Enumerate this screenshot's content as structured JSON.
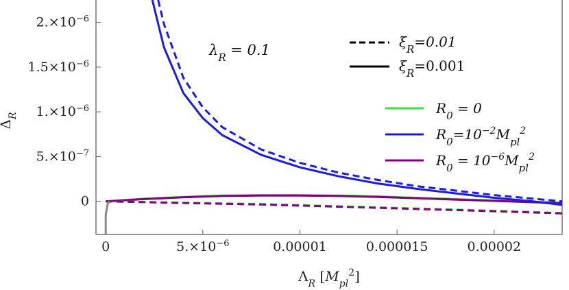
{
  "chart_data": {
    "type": "line",
    "xlabel": "ΛR [Mpl2]",
    "ylabel": "ΔR",
    "xlim": [
      -5e-07,
      2.35e-05
    ],
    "ylim": [
      -3.7e-07,
      2.25e-06
    ],
    "x_ticks": [
      {
        "value": 0,
        "label": "0"
      },
      {
        "value": 5e-06,
        "label": "5.×10−6"
      },
      {
        "value": 1e-05,
        "label": "0.00001"
      },
      {
        "value": 1.5e-05,
        "label": "0.000015"
      },
      {
        "value": 2e-05,
        "label": "0.00002"
      }
    ],
    "y_ticks": [
      {
        "value": 0,
        "label": "0"
      },
      {
        "value": 5e-07,
        "label": "5.×10−7"
      },
      {
        "value": 1e-06,
        "label": "1.×10−6"
      },
      {
        "value": 1.5e-06,
        "label": "1.5×10−6"
      },
      {
        "value": 2e-06,
        "label": "2.×10−6"
      }
    ],
    "annotation": "λR = 0.1",
    "style_legend": [
      {
        "label": "ξR=0.01",
        "dash": "dashed"
      },
      {
        "label": "ξR=0.001",
        "dash": "solid"
      }
    ],
    "color_legend": [
      {
        "label": "R0 = 0",
        "color": "#33e633"
      },
      {
        "label": "R0=10−2Mpl2",
        "color": "#1a1ae6"
      },
      {
        "label": "R0 = 10−6Mpl2",
        "color": "#800080"
      }
    ],
    "series": [
      {
        "label": "R0=10−2Mpl2",
        "color": "#1a1ae6",
        "dash": "solid",
        "x": [
          2.4e-06,
          3e-06,
          4e-06,
          5e-06,
          6e-06,
          8e-06,
          1e-05,
          1.2e-05,
          1.4e-05,
          1.6e-05,
          1.8e-05,
          2e-05,
          2.2e-05,
          2.35e-05
        ],
        "y": [
          2.25e-06,
          1.72e-06,
          1.21e-06,
          9.3e-07,
          7.4e-07,
          5.2e-07,
          3.8e-07,
          2.8e-07,
          2e-07,
          1.4e-07,
          9e-08,
          4e-08,
          0.0,
          -4e-08
        ]
      },
      {
        "label": "R0=10−2Mpl2",
        "color": "#1a1ae6",
        "dash": "dashed",
        "x": [
          2.7e-06,
          3e-06,
          4e-06,
          5e-06,
          6e-06,
          8e-06,
          1e-05,
          1.2e-05,
          1.4e-05,
          1.6e-05,
          1.8e-05,
          2e-05,
          2.2e-05,
          2.35e-05
        ],
        "y": [
          2.25e-06,
          1.98e-06,
          1.38e-06,
          1.05e-06,
          8.3e-07,
          5.8e-07,
          4.3e-07,
          3.2e-07,
          2.4e-07,
          1.7e-07,
          1.2e-07,
          7e-08,
          3e-08,
          0.0
        ]
      },
      {
        "label": "R0 = 0",
        "color": "#33e633",
        "dash": "solid",
        "x": [
          0,
          2e-06,
          4e-06,
          6e-06,
          8e-06,
          1e-05,
          1.2e-05,
          1.4e-05,
          1.6e-05,
          1.8e-05,
          2e-05,
          2.2e-05,
          2.35e-05
        ],
        "y": [
          0,
          3e-08,
          5e-08,
          6.5e-08,
          7e-08,
          7e-08,
          6.5e-08,
          5.5e-08,
          4e-08,
          2.5e-08,
          1e-08,
          -5e-09,
          -1.5e-08
        ]
      },
      {
        "label": "R0 = 10−6Mpl2",
        "color": "#800080",
        "dash": "solid",
        "x": [
          0,
          2e-06,
          4e-06,
          6e-06,
          8e-06,
          1e-05,
          1.2e-05,
          1.4e-05,
          1.6e-05,
          1.8e-05,
          2e-05,
          2.2e-05,
          2.35e-05
        ],
        "y": [
          0,
          2.5e-08,
          4.5e-08,
          6e-08,
          6.5e-08,
          6.5e-08,
          6e-08,
          5e-08,
          3.5e-08,
          2e-08,
          5e-09,
          -1e-08,
          -2e-08
        ]
      },
      {
        "label": "R0 = 0",
        "color": "#33e633",
        "dash": "dashed",
        "x": [
          0,
          4e-06,
          8e-06,
          1.2e-05,
          1.6e-05,
          2e-05,
          2.35e-05
        ],
        "y": [
          0,
          -1.5e-08,
          -3e-08,
          -5.5e-08,
          -8e-08,
          -1.05e-07,
          -1.3e-07
        ]
      },
      {
        "label": "R0 = 10−6Mpl2",
        "color": "#800080",
        "dash": "dashed",
        "x": [
          0,
          4e-06,
          8e-06,
          1.2e-05,
          1.6e-05,
          2e-05,
          2.35e-05
        ],
        "y": [
          0,
          -1.8e-08,
          -3.5e-08,
          -6e-08,
          -8.5e-08,
          -1.1e-07,
          -1.35e-07
        ]
      },
      {
        "label": "",
        "color": "#888888",
        "dash": "solid",
        "x": [
          0,
          0,
          1e-07,
          2e-07
        ],
        "y": [
          -3.7e-07,
          -1.5e-07,
          -3e-08,
          0
        ]
      }
    ]
  }
}
